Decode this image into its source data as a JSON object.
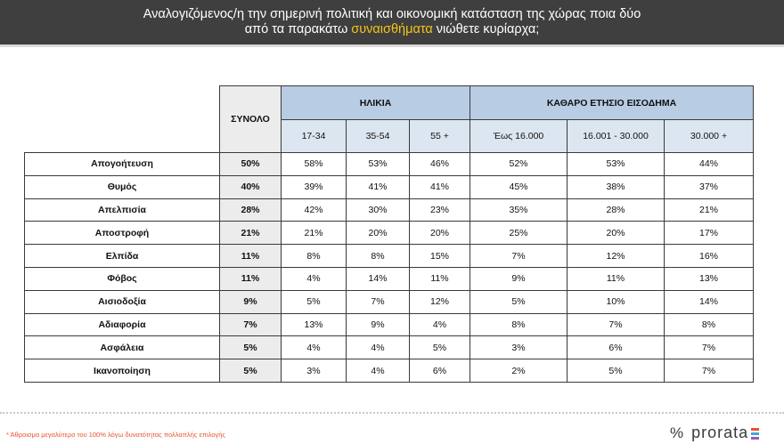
{
  "header": {
    "line1": "Αναλογιζόμενος/η την σημερινή πολιτική και οικονομική κατάσταση της χώρας ποια δύο",
    "line2_pre": "από τα παρακάτω ",
    "line2_highlight": "συναισθήματα",
    "line2_post": " νιώθετε κυρίαρχα;"
  },
  "table": {
    "total_header": "ΣΥΝΟΛΟ",
    "group_age": "ΗΛΙΚΙΑ",
    "group_income": "ΚΑΘΑΡΟ ΕΤΗΣΙΟ ΕΙΣΟΔΗΜΑ",
    "age_cols": [
      "17-34",
      "35-54",
      "55 +"
    ],
    "income_cols": [
      "Έως 16.000",
      "16.001 - 30.000",
      "30.000 +"
    ],
    "rows": [
      {
        "label": "Απογοήτευση",
        "total": "50%",
        "vals": [
          "58%",
          "53%",
          "46%",
          "52%",
          "53%",
          "44%"
        ]
      },
      {
        "label": "Θυμός",
        "total": "40%",
        "vals": [
          "39%",
          "41%",
          "41%",
          "45%",
          "38%",
          "37%"
        ]
      },
      {
        "label": "Απελπισία",
        "total": "28%",
        "vals": [
          "42%",
          "30%",
          "23%",
          "35%",
          "28%",
          "21%"
        ]
      },
      {
        "label": "Αποστροφή",
        "total": "21%",
        "vals": [
          "21%",
          "20%",
          "20%",
          "25%",
          "20%",
          "17%"
        ]
      },
      {
        "label": "Ελπίδα",
        "total": "11%",
        "vals": [
          "8%",
          "8%",
          "15%",
          "7%",
          "12%",
          "16%"
        ]
      },
      {
        "label": "Φόβος",
        "total": "11%",
        "vals": [
          "4%",
          "14%",
          "11%",
          "9%",
          "11%",
          "13%"
        ]
      },
      {
        "label": "Αισιοδοξία",
        "total": "9%",
        "vals": [
          "5%",
          "7%",
          "12%",
          "5%",
          "10%",
          "14%"
        ]
      },
      {
        "label": "Αδιαφορία",
        "total": "7%",
        "vals": [
          "13%",
          "9%",
          "4%",
          "8%",
          "7%",
          "8%"
        ]
      },
      {
        "label": "Ασφάλεια",
        "total": "5%",
        "vals": [
          "4%",
          "4%",
          "5%",
          "3%",
          "6%",
          "7%"
        ]
      },
      {
        "label": "Ικανοποίηση",
        "total": "5%",
        "vals": [
          "3%",
          "4%",
          "6%",
          "2%",
          "5%",
          "7%"
        ]
      }
    ]
  },
  "footnote": "* Άθροισμα μεγαλύτερο του 100% λόγω δυνατότητας πολλαπλής επιλογής",
  "brand": {
    "mark": "%",
    "name": "prorata",
    "bar_colors": [
      "#e8532e",
      "#3fa9d8",
      "#9b59b6"
    ]
  }
}
